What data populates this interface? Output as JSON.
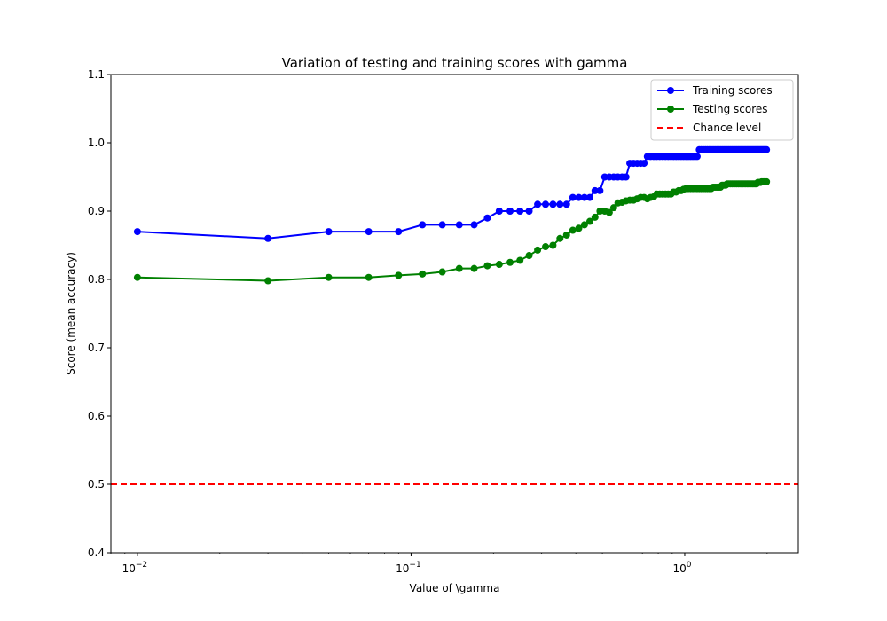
{
  "chart_data": {
    "type": "line",
    "title": "Variation of testing and training scores with gamma",
    "xlabel": "Value of \\gamma",
    "ylabel": "Score (mean accuracy)",
    "xscale": "log",
    "xlim": [
      0.008,
      2.6
    ],
    "ylim": [
      0.4,
      1.1
    ],
    "yticks": [
      0.4,
      0.5,
      0.6,
      0.7,
      0.8,
      0.9,
      1.0,
      1.1
    ],
    "xticks": [
      {
        "value": 0.01,
        "base": "10",
        "exp": "−2"
      },
      {
        "value": 0.1,
        "base": "10",
        "exp": "−1"
      },
      {
        "value": 1,
        "base": "10",
        "exp": "0"
      }
    ],
    "grid": false,
    "legend_position": "top-right",
    "series": [
      {
        "name": "Training scores",
        "color": "#0000ff",
        "style": "solid-marker",
        "x": [
          0.01,
          0.03,
          0.05,
          0.07,
          0.09,
          0.11,
          0.13,
          0.15,
          0.17,
          0.19,
          0.21,
          0.23,
          0.25,
          0.27,
          0.29,
          0.31,
          0.33,
          0.35,
          0.37,
          0.39,
          0.41,
          0.43,
          0.45,
          0.47,
          0.49,
          0.51,
          0.53,
          0.55,
          0.57,
          0.59,
          0.61,
          0.63,
          0.65,
          0.67,
          0.69,
          0.71,
          0.73,
          0.75,
          0.77,
          0.79,
          0.81,
          0.83,
          0.85,
          0.87,
          0.89,
          0.91,
          0.93,
          0.95,
          0.97,
          0.99,
          1.01,
          1.03,
          1.05,
          1.07,
          1.09,
          1.11,
          1.13,
          1.15,
          1.17,
          1.19,
          1.21,
          1.23,
          1.25,
          1.27,
          1.29,
          1.31,
          1.33,
          1.35,
          1.37,
          1.39,
          1.41,
          1.43,
          1.45,
          1.47,
          1.49,
          1.51,
          1.53,
          1.55,
          1.57,
          1.59,
          1.61,
          1.63,
          1.65,
          1.67,
          1.69,
          1.71,
          1.73,
          1.75,
          1.77,
          1.79,
          1.81,
          1.83,
          1.85,
          1.87,
          1.89,
          1.91,
          1.93,
          1.95,
          1.97,
          1.99
        ],
        "values": [
          0.87,
          0.86,
          0.87,
          0.87,
          0.87,
          0.88,
          0.88,
          0.88,
          0.88,
          0.89,
          0.9,
          0.9,
          0.9,
          0.9,
          0.91,
          0.91,
          0.91,
          0.91,
          0.91,
          0.92,
          0.92,
          0.92,
          0.92,
          0.93,
          0.93,
          0.95,
          0.95,
          0.95,
          0.95,
          0.95,
          0.95,
          0.97,
          0.97,
          0.97,
          0.97,
          0.97,
          0.98,
          0.98,
          0.98,
          0.98,
          0.98,
          0.98,
          0.98,
          0.98,
          0.98,
          0.98,
          0.98,
          0.98,
          0.98,
          0.98,
          0.98,
          0.98,
          0.98,
          0.98,
          0.98,
          0.98,
          0.99,
          0.99,
          0.99,
          0.99,
          0.99,
          0.99,
          0.99,
          0.99,
          0.99,
          0.99,
          0.99,
          0.99,
          0.99,
          0.99,
          0.99,
          0.99,
          0.99,
          0.99,
          0.99,
          0.99,
          0.99,
          0.99,
          0.99,
          0.99,
          0.99,
          0.99,
          0.99,
          0.99,
          0.99,
          0.99,
          0.99,
          0.99,
          0.99,
          0.99,
          0.99,
          0.99,
          0.99,
          0.99,
          0.99,
          0.99,
          0.99,
          0.99,
          0.99,
          0.99
        ]
      },
      {
        "name": "Testing scores",
        "color": "#008000",
        "style": "solid-marker",
        "x": [
          0.01,
          0.03,
          0.05,
          0.07,
          0.09,
          0.11,
          0.13,
          0.15,
          0.17,
          0.19,
          0.21,
          0.23,
          0.25,
          0.27,
          0.29,
          0.31,
          0.33,
          0.35,
          0.37,
          0.39,
          0.41,
          0.43,
          0.45,
          0.47,
          0.49,
          0.51,
          0.53,
          0.55,
          0.57,
          0.59,
          0.61,
          0.63,
          0.65,
          0.67,
          0.69,
          0.71,
          0.73,
          0.75,
          0.77,
          0.79,
          0.81,
          0.83,
          0.85,
          0.87,
          0.89,
          0.91,
          0.93,
          0.95,
          0.97,
          0.99,
          1.01,
          1.03,
          1.05,
          1.07,
          1.09,
          1.11,
          1.13,
          1.15,
          1.17,
          1.19,
          1.21,
          1.23,
          1.25,
          1.27,
          1.29,
          1.31,
          1.33,
          1.35,
          1.37,
          1.39,
          1.41,
          1.43,
          1.45,
          1.47,
          1.49,
          1.51,
          1.53,
          1.55,
          1.57,
          1.59,
          1.61,
          1.63,
          1.65,
          1.67,
          1.69,
          1.71,
          1.73,
          1.75,
          1.77,
          1.79,
          1.81,
          1.83,
          1.85,
          1.87,
          1.89,
          1.91,
          1.93,
          1.95,
          1.97,
          1.99
        ],
        "values": [
          0.803,
          0.798,
          0.803,
          0.803,
          0.806,
          0.808,
          0.811,
          0.816,
          0.816,
          0.82,
          0.822,
          0.825,
          0.828,
          0.835,
          0.843,
          0.848,
          0.85,
          0.86,
          0.865,
          0.872,
          0.875,
          0.88,
          0.885,
          0.891,
          0.9,
          0.9,
          0.898,
          0.905,
          0.912,
          0.913,
          0.915,
          0.916,
          0.916,
          0.918,
          0.92,
          0.92,
          0.918,
          0.92,
          0.921,
          0.925,
          0.925,
          0.925,
          0.925,
          0.925,
          0.925,
          0.928,
          0.928,
          0.93,
          0.93,
          0.932,
          0.933,
          0.933,
          0.933,
          0.933,
          0.933,
          0.933,
          0.933,
          0.933,
          0.933,
          0.933,
          0.933,
          0.933,
          0.933,
          0.935,
          0.935,
          0.935,
          0.935,
          0.935,
          0.938,
          0.938,
          0.938,
          0.94,
          0.94,
          0.94,
          0.94,
          0.94,
          0.94,
          0.94,
          0.94,
          0.94,
          0.94,
          0.94,
          0.94,
          0.94,
          0.94,
          0.94,
          0.94,
          0.94,
          0.94,
          0.94,
          0.94,
          0.94,
          0.942,
          0.942,
          0.942,
          0.943,
          0.943,
          0.943,
          0.943,
          0.943
        ]
      },
      {
        "name": "Chance level",
        "color": "#ff0000",
        "style": "dashed",
        "constant": 0.5
      }
    ]
  }
}
